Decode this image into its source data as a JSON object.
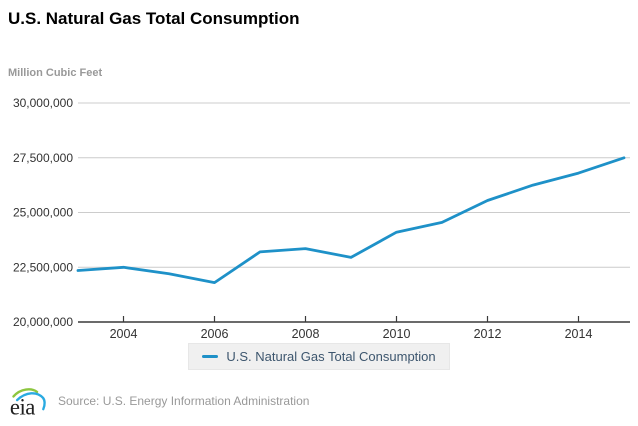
{
  "header": {
    "title": "U.S. Natural Gas Total Consumption"
  },
  "axes": {
    "unit_label": "Million Cubic Feet"
  },
  "chart_data": {
    "type": "line",
    "title": "U.S. Natural Gas Total Consumption",
    "ylabel": "Million Cubic Feet",
    "xlabel": "",
    "x": [
      2003,
      2004,
      2005,
      2006,
      2007,
      2008,
      2009,
      2010,
      2011,
      2012,
      2013,
      2014,
      2015
    ],
    "series": [
      {
        "name": "U.S. Natural Gas Total Consumption",
        "color": "#1E91C8",
        "values": [
          22350000,
          22500000,
          22200000,
          21800000,
          23200000,
          23350000,
          22950000,
          24100000,
          24550000,
          25550000,
          26250000,
          26800000,
          27500000
        ]
      }
    ],
    "xlim": [
      2003,
      2015
    ],
    "ylim": [
      20000000,
      30000000
    ],
    "yticks": [
      20000000,
      22500000,
      25000000,
      27500000,
      30000000
    ],
    "xticks": [
      2004,
      2006,
      2008,
      2010,
      2012,
      2014
    ],
    "grid": true,
    "grid_color": "#cccccc",
    "axis_color": "#3a3a3a",
    "tick_label_color": "#333333",
    "legend_position": "bottom-center"
  },
  "legend": {
    "label": "U.S. Natural Gas Total Consumption"
  },
  "footer": {
    "logo_text": "eia",
    "source": "Source: U.S. Energy Information Administration"
  }
}
